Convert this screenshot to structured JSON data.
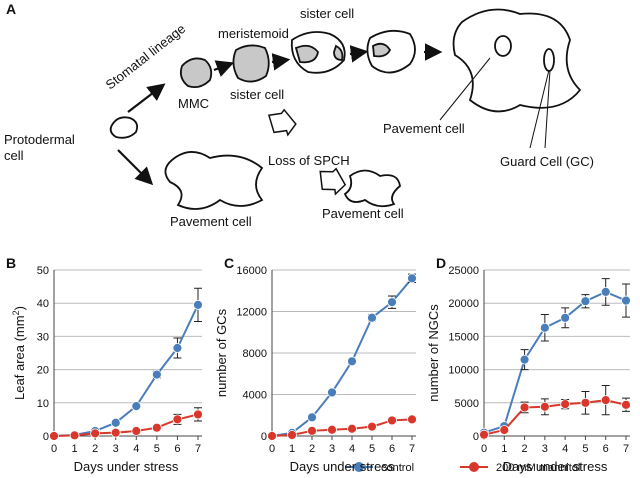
{
  "panel_a": {
    "label": "A",
    "stomatal_lineage": "Stomatal lineage",
    "protodermal_cell": [
      "Protodermal",
      "cell"
    ],
    "mmc": "MMC",
    "meristemoid": "meristemoid",
    "sister_cell_top": "sister cell",
    "sister_cell_bottom": "sister cell",
    "loss_of_spch": "Loss of SPCH",
    "pavement_cell_right": "Pavement cell",
    "pavement_cell_left": "Pavement cell",
    "pavement_cell_middle": "Pavement cell",
    "guard_cell": "Guard Cell (GC)"
  },
  "legend": [
    {
      "name": "control",
      "color": "#4a7ebb"
    },
    {
      "name": "200 mM mannitol",
      "color": "#d9372b"
    }
  ],
  "chart_data": [
    {
      "type": "line",
      "label": "B",
      "y_label": [
        "Leaf area (mm",
        "2",
        ")"
      ],
      "x_label": "Days under stress",
      "x": [
        0,
        1,
        2,
        3,
        4,
        5,
        6,
        7
      ],
      "xlim": [
        0,
        7
      ],
      "xticks": [
        0,
        1,
        2,
        3,
        4,
        5,
        6,
        7
      ],
      "ylim": [
        0,
        50
      ],
      "yticks": [
        0,
        10,
        20,
        30,
        40,
        50
      ],
      "grid": true,
      "series": [
        {
          "color": "#4a7ebb",
          "values": [
            0,
            0.3,
            1.5,
            4,
            9,
            18.5,
            26.5,
            39.5
          ],
          "errors": [
            0,
            0,
            0.3,
            0.5,
            0.5,
            1,
            3,
            5
          ]
        },
        {
          "color": "#d9372b",
          "values": [
            0,
            0.2,
            0.8,
            1,
            1.5,
            2.5,
            5,
            6.5
          ],
          "errors": [
            0,
            0,
            0.3,
            0.3,
            0.3,
            0.5,
            1.5,
            2
          ]
        }
      ]
    },
    {
      "type": "line",
      "label": "C",
      "y_label": [
        "number of GCs"
      ],
      "x_label": "Days under stress",
      "x": [
        0,
        1,
        2,
        3,
        4,
        5,
        6,
        7
      ],
      "xlim": [
        0,
        7
      ],
      "xticks": [
        0,
        1,
        2,
        3,
        4,
        5,
        6,
        7
      ],
      "ylim": [
        0,
        16000
      ],
      "yticks": [
        0,
        4000,
        8000,
        12000,
        16000
      ],
      "grid": true,
      "series": [
        {
          "color": "#4a7ebb",
          "values": [
            0,
            300,
            1800,
            4200,
            7200,
            11400,
            12900,
            15200
          ],
          "errors": [
            0,
            0,
            0,
            0,
            0,
            300,
            600,
            400
          ]
        },
        {
          "color": "#d9372b",
          "values": [
            0,
            100,
            500,
            600,
            700,
            900,
            1500,
            1600
          ],
          "errors": [
            0,
            0,
            0,
            0,
            0,
            0,
            0,
            0
          ]
        }
      ]
    },
    {
      "type": "line",
      "label": "D",
      "y_label": [
        "number of NGCs"
      ],
      "x_label": "Days under stress",
      "x": [
        0,
        1,
        2,
        3,
        4,
        5,
        6,
        7
      ],
      "xlim": [
        0,
        7
      ],
      "xticks": [
        0,
        1,
        2,
        3,
        4,
        5,
        6,
        7
      ],
      "ylim": [
        0,
        25000
      ],
      "yticks": [
        0,
        5000,
        10000,
        15000,
        20000,
        25000
      ],
      "grid": true,
      "series": [
        {
          "color": "#4a7ebb",
          "values": [
            500,
            1500,
            11500,
            16300,
            17800,
            20300,
            21700,
            20400
          ],
          "errors": [
            0,
            300,
            1500,
            2000,
            1500,
            1000,
            2000,
            2500
          ]
        },
        {
          "color": "#d9372b",
          "values": [
            200,
            900,
            4300,
            4400,
            4800,
            5000,
            5400,
            4700
          ],
          "errors": [
            0,
            200,
            800,
            1200,
            700,
            1700,
            2200,
            1000
          ]
        }
      ]
    }
  ]
}
